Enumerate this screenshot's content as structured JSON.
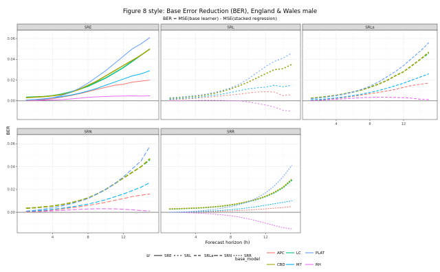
{
  "chart_data": {
    "type": "line",
    "title": "Figure 8 style: Base Error Reduction (BER), England & Wales male",
    "subtitle": "BER = MSE(base learner) - MSE(stacked regression)",
    "xlabel": "Forecast horizon (h)",
    "ylabel": "BER",
    "x": [
      1,
      2,
      3,
      4,
      5,
      6,
      7,
      8,
      9,
      10,
      11,
      12,
      13,
      14,
      15
    ],
    "xlim": [
      0,
      16
    ],
    "ylim": [
      -0.018,
      0.068
    ],
    "x_ticks": [
      4,
      8,
      12
    ],
    "y_ticks": [
      0.0,
      0.02,
      0.04,
      0.06
    ],
    "y_tick_labels": [
      "0.00",
      "0.02",
      "0.04",
      "0.06"
    ],
    "grid": true,
    "legend_placement": "bottom",
    "legend": {
      "sr_title": "sr",
      "sr_items": [
        {
          "label": "SRE",
          "dash": "solid"
        },
        {
          "label": "SRL",
          "dash": "dotted-sparse"
        },
        {
          "label": "SRLa",
          "dash": "dashed"
        },
        {
          "label": "SRN",
          "dash": "longdash"
        },
        {
          "label": "SRR",
          "dash": "dotted"
        }
      ],
      "model_title": "base_model",
      "model_items": [
        {
          "label": "APC",
          "color": "#F8766D"
        },
        {
          "label": "CBD",
          "color": "#A3A500"
        },
        {
          "label": "LC",
          "color": "#00BF7D"
        },
        {
          "label": "M7",
          "color": "#00B0F6"
        },
        {
          "label": "PLAT",
          "color": "#619CFF"
        },
        {
          "label": "RH",
          "color": "#E76BF3"
        }
      ]
    },
    "colors": {
      "APC": "#F8766D",
      "CBD": "#A3A500",
      "LC": "#00BF7D",
      "M7": "#00B0F6",
      "PLAT": "#619CFF",
      "RH": "#E76BF3",
      "strip": "#d9d9d9",
      "grid": "#ebebeb"
    },
    "panels": [
      {
        "name": "SRE",
        "dash": "solid",
        "series": [
          {
            "name": "PLAT",
            "values": [
              0.0008,
              0.0012,
              0.002,
              0.003,
              0.005,
              0.008,
              0.012,
              0.017,
              0.023,
              0.029,
              0.036,
              0.043,
              0.05,
              0.055,
              0.061
            ]
          },
          {
            "name": "CBD",
            "values": [
              0.003,
              0.0035,
              0.004,
              0.0048,
              0.006,
              0.008,
              0.011,
              0.015,
              0.019,
              0.024,
              0.029,
              0.034,
              0.039,
              0.044,
              0.05
            ]
          },
          {
            "name": "LC",
            "values": [
              0.0035,
              0.0038,
              0.0042,
              0.005,
              0.0065,
              0.0085,
              0.011,
              0.014,
              0.018,
              0.022,
              0.027,
              0.032,
              0.038,
              0.044,
              0.05
            ]
          },
          {
            "name": "M7",
            "values": [
              0.0005,
              0.001,
              0.0018,
              0.0028,
              0.004,
              0.0055,
              0.0072,
              0.0095,
              0.012,
              0.015,
              0.018,
              0.021,
              0.024,
              0.026,
              0.029
            ]
          },
          {
            "name": "APC",
            "values": [
              0.0,
              0.0005,
              0.0012,
              0.002,
              0.0035,
              0.005,
              0.0068,
              0.0088,
              0.011,
              0.013,
              0.015,
              0.016,
              0.018,
              0.019,
              0.02
            ]
          },
          {
            "name": "RH",
            "values": [
              0.0,
              0.0002,
              0.0005,
              0.0008,
              0.0012,
              0.0018,
              0.0025,
              0.0033,
              0.0038,
              0.0042,
              0.0045,
              0.0047,
              0.0048,
              0.0046,
              0.0048
            ]
          }
        ]
      },
      {
        "name": "SRL",
        "dash": "dotted-sparse",
        "series": [
          {
            "name": "PLAT",
            "values": [
              0.003,
              0.0035,
              0.0042,
              0.005,
              0.0062,
              0.0078,
              0.0098,
              0.0125,
              0.016,
              0.021,
              0.027,
              0.033,
              0.038,
              0.041,
              0.046
            ]
          },
          {
            "name": "CBD",
            "values": [
              0.0025,
              0.003,
              0.0038,
              0.0045,
              0.0055,
              0.007,
              0.009,
              0.0115,
              0.0145,
              0.018,
              0.022,
              0.026,
              0.03,
              0.031,
              0.035
            ]
          },
          {
            "name": "LC",
            "values": [
              0.0025,
              0.003,
              0.0038,
              0.0045,
              0.0055,
              0.007,
              0.009,
              0.0115,
              0.0145,
              0.018,
              0.022,
              0.026,
              0.03,
              0.031,
              0.035
            ]
          },
          {
            "name": "M7",
            "values": [
              0.0015,
              0.002,
              0.0026,
              0.0032,
              0.0042,
              0.0052,
              0.0065,
              0.008,
              0.0098,
              0.0115,
              0.0125,
              0.0132,
              0.015,
              0.0135,
              0.015
            ]
          },
          {
            "name": "APC",
            "values": [
              0.0008,
              0.0013,
              0.0018,
              0.0025,
              0.0032,
              0.004,
              0.0048,
              0.0056,
              0.0065,
              0.0075,
              0.0085,
              0.0088,
              0.0085,
              0.005,
              0.006
            ]
          },
          {
            "name": "RH",
            "values": [
              0.0,
              0.0,
              0.0002,
              0.0004,
              0.0005,
              0.0005,
              0.0004,
              0.0002,
              0.0,
              -0.001,
              -0.0025,
              -0.004,
              -0.006,
              -0.009,
              -0.01
            ]
          }
        ]
      },
      {
        "name": "SRLa",
        "dash": "dashed",
        "series": [
          {
            "name": "PLAT",
            "values": [
              0.002,
              0.0028,
              0.0038,
              0.005,
              0.0065,
              0.0085,
              0.011,
              0.014,
              0.018,
              0.023,
              0.028,
              0.034,
              0.041,
              0.048,
              0.056
            ]
          },
          {
            "name": "CBD",
            "values": [
              0.0025,
              0.0033,
              0.0042,
              0.0053,
              0.0068,
              0.0085,
              0.0105,
              0.013,
              0.016,
              0.0195,
              0.024,
              0.028,
              0.034,
              0.04,
              0.047
            ]
          },
          {
            "name": "LC",
            "values": [
              0.0025,
              0.0033,
              0.0042,
              0.0053,
              0.0068,
              0.0085,
              0.0105,
              0.013,
              0.016,
              0.0195,
              0.024,
              0.028,
              0.034,
              0.04,
              0.046
            ]
          },
          {
            "name": "M7",
            "values": [
              0.0008,
              0.0013,
              0.002,
              0.0028,
              0.0038,
              0.005,
              0.0064,
              0.008,
              0.0098,
              0.012,
              0.0145,
              0.017,
              0.02,
              0.023,
              0.026
            ]
          },
          {
            "name": "APC",
            "values": [
              0.0005,
              0.001,
              0.0016,
              0.0024,
              0.0033,
              0.0044,
              0.0056,
              0.0068,
              0.008,
              0.0095,
              0.011,
              0.013,
              0.0148,
              0.016,
              0.017
            ]
          },
          {
            "name": "RH",
            "values": [
              0.0,
              0.0005,
              0.001,
              0.0015,
              0.002,
              0.0025,
              0.003,
              0.0033,
              0.0035,
              0.0035,
              0.0033,
              0.003,
              0.0025,
              0.0015,
              0.0012
            ]
          }
        ]
      },
      {
        "name": "SRN",
        "dash": "longdash",
        "series": [
          {
            "name": "PLAT",
            "values": [
              0.001,
              0.0018,
              0.0028,
              0.004,
              0.0055,
              0.0073,
              0.0095,
              0.012,
              0.016,
              0.02,
              0.025,
              0.031,
              0.038,
              0.045,
              0.058
            ]
          },
          {
            "name": "CBD",
            "values": [
              0.0035,
              0.004,
              0.0047,
              0.0055,
              0.0067,
              0.0082,
              0.0102,
              0.0125,
              0.016,
              0.02,
              0.025,
              0.03,
              0.035,
              0.04,
              0.047
            ]
          },
          {
            "name": "LC",
            "values": [
              0.0035,
              0.004,
              0.0047,
              0.0055,
              0.0067,
              0.0082,
              0.0102,
              0.0125,
              0.016,
              0.02,
              0.025,
              0.03,
              0.035,
              0.04,
              0.046
            ]
          },
          {
            "name": "M7",
            "values": [
              0.0008,
              0.0012,
              0.0018,
              0.0026,
              0.0035,
              0.0046,
              0.0058,
              0.0072,
              0.009,
              0.011,
              0.0135,
              0.016,
              0.019,
              0.022,
              0.026
            ]
          },
          {
            "name": "APC",
            "values": [
              0.0002,
              0.0007,
              0.0013,
              0.002,
              0.0028,
              0.0038,
              0.0048,
              0.006,
              0.0073,
              0.0087,
              0.0105,
              0.012,
              0.0138,
              0.015,
              0.016
            ]
          },
          {
            "name": "RH",
            "values": [
              0.0002,
              0.0005,
              0.0008,
              0.0012,
              0.0016,
              0.0021,
              0.0026,
              0.0029,
              0.0031,
              0.0031,
              0.003,
              0.0027,
              0.0022,
              0.0015,
              0.0012
            ]
          }
        ]
      },
      {
        "name": "SRR",
        "dash": "dotted",
        "series": [
          {
            "name": "PLAT",
            "values": [
              0.0,
              0.0002,
              0.0005,
              0.001,
              0.0016,
              0.0025,
              0.0036,
              0.005,
              0.0068,
              0.009,
              0.0125,
              0.017,
              0.023,
              0.031,
              0.041
            ]
          },
          {
            "name": "CBD",
            "values": [
              0.003,
              0.0032,
              0.0035,
              0.0038,
              0.0042,
              0.0048,
              0.0055,
              0.0065,
              0.0078,
              0.0095,
              0.0115,
              0.014,
              0.0175,
              0.022,
              0.029
            ]
          },
          {
            "name": "LC",
            "values": [
              0.0028,
              0.003,
              0.0033,
              0.0036,
              0.004,
              0.0046,
              0.0053,
              0.0063,
              0.0076,
              0.0092,
              0.0112,
              0.0137,
              0.017,
              0.0215,
              0.028
            ]
          },
          {
            "name": "M7",
            "values": [
              0.0,
              0.0001,
              0.0003,
              0.0005,
              0.0008,
              0.0012,
              0.0017,
              0.0023,
              0.003,
              0.0039,
              0.005,
              0.0062,
              0.0075,
              0.0087,
              0.01
            ]
          },
          {
            "name": "APC",
            "values": [
              0.0,
              0.0,
              0.0001,
              0.0002,
              0.0004,
              0.0006,
              0.0009,
              0.0012,
              0.0016,
              0.002,
              0.0025,
              0.003,
              0.0036,
              0.0042,
              0.005
            ]
          },
          {
            "name": "RH",
            "values": [
              0.0,
              -0.0001,
              -0.0003,
              -0.0006,
              -0.001,
              -0.0015,
              -0.0022,
              -0.003,
              -0.0042,
              -0.0057,
              -0.0075,
              -0.0095,
              -0.0115,
              -0.0135,
              -0.0145
            ]
          }
        ]
      }
    ]
  }
}
